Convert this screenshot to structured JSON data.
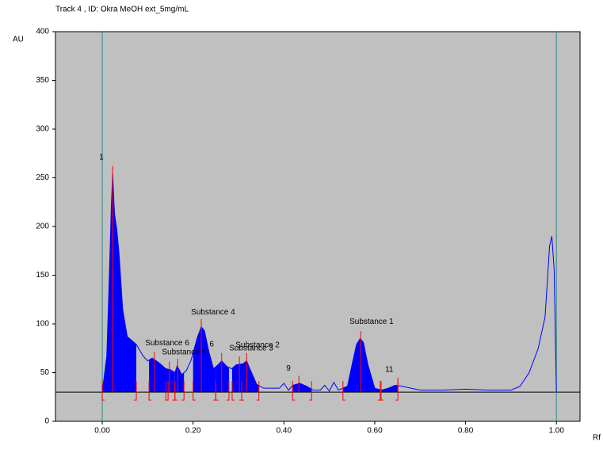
{
  "chart_data": {
    "type": "densitogram",
    "title": "Track  4 , ID: Okra MeOH ext_5mg/mL",
    "y_label": "AU",
    "x_label": "Rf",
    "xlim": [
      -0.103,
      1.052
    ],
    "ylim": [
      0,
      400
    ],
    "xticks": [
      {
        "value": 0,
        "label": "0.00"
      },
      {
        "value": 0.2,
        "label": "0.20"
      },
      {
        "value": 0.4,
        "label": "0.40"
      },
      {
        "value": 0.6,
        "label": "0.60"
      },
      {
        "value": 0.8,
        "label": "0.80"
      },
      {
        "value": 1,
        "label": "1.00"
      }
    ],
    "yticks": [
      0,
      50,
      100,
      150,
      200,
      250,
      300,
      350,
      400
    ],
    "baseline": 30,
    "vlines": [
      0,
      1
    ],
    "color": "#0000ff",
    "marker_color": "#ff0000",
    "vline_color": "#2a8a8a",
    "x": [
      0,
      0.01,
      0.015,
      0.02,
      0.023,
      0.027,
      0.032,
      0.037,
      0.045,
      0.055,
      0.065,
      0.075,
      0.09,
      0.1,
      0.11,
      0.125,
      0.14,
      0.15,
      0.16,
      0.165,
      0.175,
      0.185,
      0.195,
      0.21,
      0.218,
      0.225,
      0.235,
      0.245,
      0.255,
      0.263,
      0.275,
      0.285,
      0.295,
      0.31,
      0.318,
      0.325,
      0.34,
      0.355,
      0.37,
      0.39,
      0.4,
      0.41,
      0.42,
      0.435,
      0.45,
      0.465,
      0.48,
      0.49,
      0.5,
      0.51,
      0.52,
      0.54,
      0.55,
      0.56,
      0.568,
      0.575,
      0.585,
      0.6,
      0.615,
      0.63,
      0.645,
      0.66,
      0.7,
      0.75,
      0.8,
      0.85,
      0.9,
      0.92,
      0.94,
      0.96,
      0.975,
      0.985,
      0.99,
      0.995,
      1
    ],
    "values": [
      30,
      67,
      140,
      221,
      254,
      213,
      197,
      172,
      115,
      87,
      83,
      79,
      67,
      62,
      65,
      60,
      54,
      53,
      50,
      57,
      48,
      52,
      62,
      87,
      97,
      93,
      71,
      54,
      58,
      62,
      56,
      54,
      58,
      59,
      62,
      54,
      38,
      34,
      34,
      34,
      39,
      32,
      37,
      39,
      36,
      32,
      32,
      37,
      31,
      40,
      32,
      36,
      58,
      79,
      85,
      81,
      58,
      34,
      32,
      34,
      37,
      36,
      32,
      32,
      33,
      32,
      32,
      36,
      50,
      75,
      107,
      180,
      190,
      156,
      30
    ],
    "peaks": [
      {
        "start": 0.0,
        "max": 0.023,
        "end": 0.075
      },
      {
        "start": 0.103,
        "max": 0.115,
        "end": 0.145
      },
      {
        "start": 0.14,
        "max": 0.148,
        "end": 0.16
      },
      {
        "start": 0.16,
        "max": 0.166,
        "end": 0.18
      },
      {
        "start": 0.2,
        "max": 0.218,
        "end": 0.25
      },
      {
        "start": 0.25,
        "max": 0.263,
        "end": 0.279
      },
      {
        "start": 0.286,
        "max": 0.302,
        "end": 0.307
      },
      {
        "start": 0.307,
        "max": 0.318,
        "end": 0.345
      },
      {
        "start": 0.419,
        "max": 0.433,
        "end": 0.461
      },
      {
        "start": 0.53,
        "max": 0.569,
        "end": 0.612
      },
      {
        "start": 0.614,
        "max": 0.651,
        "end": 0.651
      }
    ],
    "annotations": [
      {
        "text": "1",
        "x": -0.002,
        "y": 271
      },
      {
        "text": "Substance 6",
        "x": 0.143,
        "y": 80
      },
      {
        "text": "Substance 5",
        "x": 0.18,
        "y": 71
      },
      {
        "text": "6",
        "x": 0.241,
        "y": 79
      },
      {
        "text": "Substance 4",
        "x": 0.244,
        "y": 112
      },
      {
        "text": "Substance 2",
        "x": 0.342,
        "y": 78
      },
      {
        "text": "Substance 3",
        "x": 0.328,
        "y": 75
      },
      {
        "text": "9",
        "x": 0.41,
        "y": 54
      },
      {
        "text": "Substance 1",
        "x": 0.593,
        "y": 102
      },
      {
        "text": "11",
        "x": 0.632,
        "y": 53
      }
    ]
  }
}
